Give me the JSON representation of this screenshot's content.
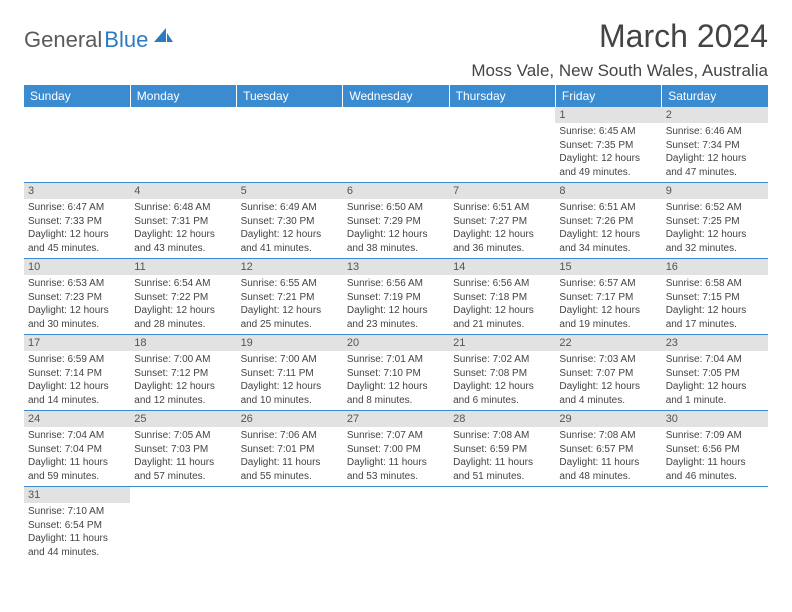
{
  "logo": {
    "part1": "General",
    "part2": "Blue"
  },
  "title": "March 2024",
  "location": "Moss Vale, New South Wales, Australia",
  "colors": {
    "header_bg": "#3b8bd0",
    "header_text": "#ffffff",
    "daynum_bg": "#e2e2e2",
    "border": "#3b8bd0",
    "logo_gray": "#5a5a5a",
    "logo_blue": "#2c7bc0"
  },
  "dayNames": [
    "Sunday",
    "Monday",
    "Tuesday",
    "Wednesday",
    "Thursday",
    "Friday",
    "Saturday"
  ],
  "weeks": [
    [
      null,
      null,
      null,
      null,
      null,
      {
        "n": "1",
        "sr": "6:45 AM",
        "ss": "7:35 PM",
        "dl": "12 hours and 49 minutes."
      },
      {
        "n": "2",
        "sr": "6:46 AM",
        "ss": "7:34 PM",
        "dl": "12 hours and 47 minutes."
      }
    ],
    [
      {
        "n": "3",
        "sr": "6:47 AM",
        "ss": "7:33 PM",
        "dl": "12 hours and 45 minutes."
      },
      {
        "n": "4",
        "sr": "6:48 AM",
        "ss": "7:31 PM",
        "dl": "12 hours and 43 minutes."
      },
      {
        "n": "5",
        "sr": "6:49 AM",
        "ss": "7:30 PM",
        "dl": "12 hours and 41 minutes."
      },
      {
        "n": "6",
        "sr": "6:50 AM",
        "ss": "7:29 PM",
        "dl": "12 hours and 38 minutes."
      },
      {
        "n": "7",
        "sr": "6:51 AM",
        "ss": "7:27 PM",
        "dl": "12 hours and 36 minutes."
      },
      {
        "n": "8",
        "sr": "6:51 AM",
        "ss": "7:26 PM",
        "dl": "12 hours and 34 minutes."
      },
      {
        "n": "9",
        "sr": "6:52 AM",
        "ss": "7:25 PM",
        "dl": "12 hours and 32 minutes."
      }
    ],
    [
      {
        "n": "10",
        "sr": "6:53 AM",
        "ss": "7:23 PM",
        "dl": "12 hours and 30 minutes."
      },
      {
        "n": "11",
        "sr": "6:54 AM",
        "ss": "7:22 PM",
        "dl": "12 hours and 28 minutes."
      },
      {
        "n": "12",
        "sr": "6:55 AM",
        "ss": "7:21 PM",
        "dl": "12 hours and 25 minutes."
      },
      {
        "n": "13",
        "sr": "6:56 AM",
        "ss": "7:19 PM",
        "dl": "12 hours and 23 minutes."
      },
      {
        "n": "14",
        "sr": "6:56 AM",
        "ss": "7:18 PM",
        "dl": "12 hours and 21 minutes."
      },
      {
        "n": "15",
        "sr": "6:57 AM",
        "ss": "7:17 PM",
        "dl": "12 hours and 19 minutes."
      },
      {
        "n": "16",
        "sr": "6:58 AM",
        "ss": "7:15 PM",
        "dl": "12 hours and 17 minutes."
      }
    ],
    [
      {
        "n": "17",
        "sr": "6:59 AM",
        "ss": "7:14 PM",
        "dl": "12 hours and 14 minutes."
      },
      {
        "n": "18",
        "sr": "7:00 AM",
        "ss": "7:12 PM",
        "dl": "12 hours and 12 minutes."
      },
      {
        "n": "19",
        "sr": "7:00 AM",
        "ss": "7:11 PM",
        "dl": "12 hours and 10 minutes."
      },
      {
        "n": "20",
        "sr": "7:01 AM",
        "ss": "7:10 PM",
        "dl": "12 hours and 8 minutes."
      },
      {
        "n": "21",
        "sr": "7:02 AM",
        "ss": "7:08 PM",
        "dl": "12 hours and 6 minutes."
      },
      {
        "n": "22",
        "sr": "7:03 AM",
        "ss": "7:07 PM",
        "dl": "12 hours and 4 minutes."
      },
      {
        "n": "23",
        "sr": "7:04 AM",
        "ss": "7:05 PM",
        "dl": "12 hours and 1 minute."
      }
    ],
    [
      {
        "n": "24",
        "sr": "7:04 AM",
        "ss": "7:04 PM",
        "dl": "11 hours and 59 minutes."
      },
      {
        "n": "25",
        "sr": "7:05 AM",
        "ss": "7:03 PM",
        "dl": "11 hours and 57 minutes."
      },
      {
        "n": "26",
        "sr": "7:06 AM",
        "ss": "7:01 PM",
        "dl": "11 hours and 55 minutes."
      },
      {
        "n": "27",
        "sr": "7:07 AM",
        "ss": "7:00 PM",
        "dl": "11 hours and 53 minutes."
      },
      {
        "n": "28",
        "sr": "7:08 AM",
        "ss": "6:59 PM",
        "dl": "11 hours and 51 minutes."
      },
      {
        "n": "29",
        "sr": "7:08 AM",
        "ss": "6:57 PM",
        "dl": "11 hours and 48 minutes."
      },
      {
        "n": "30",
        "sr": "7:09 AM",
        "ss": "6:56 PM",
        "dl": "11 hours and 46 minutes."
      }
    ],
    [
      {
        "n": "31",
        "sr": "7:10 AM",
        "ss": "6:54 PM",
        "dl": "11 hours and 44 minutes."
      },
      null,
      null,
      null,
      null,
      null,
      null
    ]
  ],
  "labels": {
    "sunrise": "Sunrise: ",
    "sunset": "Sunset: ",
    "daylight": "Daylight: "
  }
}
